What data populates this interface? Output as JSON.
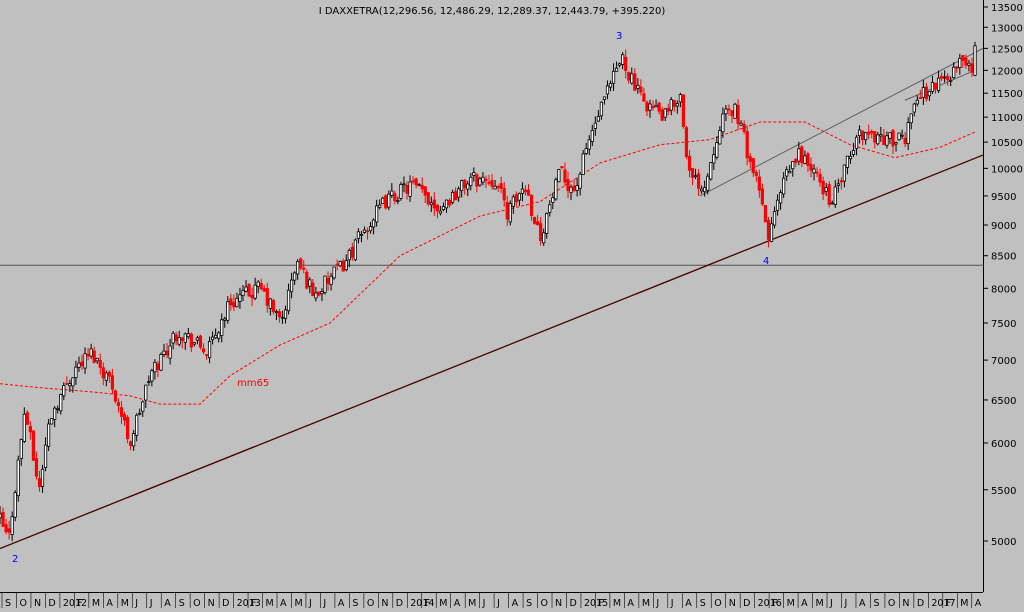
{
  "header": {
    "title": "I DAXXETRA(12,296.56, 12,486.29, 12,289.37, 12,443.79, +395.220)"
  },
  "annotations": {
    "wave_2": "2",
    "wave_3": "3",
    "wave_4": "4",
    "ma_label": "mm65"
  },
  "colors": {
    "background": "#c0c0c0",
    "up_candle": "#000000",
    "down_candle": "#ff0000",
    "ma_line": "#ff0000",
    "trendline": "#400000",
    "channel": "#606060",
    "label_blue": "#0000ff"
  },
  "chart_data": {
    "type": "candlestick",
    "title": "I DAXXETRA(12,296.56, 12,486.29, 12,289.37, 12,443.79, +395.220)",
    "scale": "log",
    "ylim": [
      4500,
      13600
    ],
    "y_ticks": [
      5000,
      5500,
      6000,
      6500,
      7000,
      7500,
      8000,
      8500,
      9000,
      9500,
      10000,
      10500,
      11000,
      11500,
      12000,
      12500,
      13000,
      13500
    ],
    "x_labels": [
      "S",
      "O",
      "N",
      "D",
      "2012",
      "F",
      "M",
      "A",
      "M",
      "J",
      "J",
      "A",
      "S",
      "O",
      "N",
      "D",
      "2013",
      "F",
      "M",
      "A",
      "M",
      "J",
      "J",
      "A",
      "S",
      "O",
      "N",
      "D",
      "2014",
      "F",
      "M",
      "A",
      "M",
      "J",
      "J",
      "A",
      "S",
      "O",
      "N",
      "D",
      "2015",
      "F",
      "M",
      "A",
      "M",
      "J",
      "J",
      "A",
      "S",
      "O",
      "N",
      "D",
      "2016",
      "F",
      "M",
      "A",
      "M",
      "J",
      "J",
      "A",
      "S",
      "O",
      "N",
      "D",
      "2017",
      "F",
      "M",
      "A"
    ],
    "key_points": [
      {
        "t": 0.0,
        "close": 5200
      },
      {
        "t": 8.5,
        "close": 5000
      },
      {
        "t": 25.0,
        "close": 6400
      },
      {
        "t": 39.0,
        "close": 5500
      },
      {
        "t": 50.0,
        "close": 6300
      },
      {
        "t": 75.0,
        "close": 6900
      },
      {
        "t": 92.0,
        "close": 7100
      },
      {
        "t": 112.0,
        "close": 6700
      },
      {
        "t": 130.0,
        "close": 6000
      },
      {
        "t": 150.0,
        "close": 6800
      },
      {
        "t": 178.0,
        "close": 7400
      },
      {
        "t": 208.0,
        "close": 7100
      },
      {
        "t": 230.0,
        "close": 7800
      },
      {
        "t": 260.0,
        "close": 8000
      },
      {
        "t": 281.0,
        "close": 7500
      },
      {
        "t": 297.0,
        "close": 8400
      },
      {
        "t": 315.0,
        "close": 7900
      },
      {
        "t": 345.0,
        "close": 8400
      },
      {
        "t": 360.0,
        "close": 8800
      },
      {
        "t": 385.0,
        "close": 9400
      },
      {
        "t": 411.0,
        "close": 9700
      },
      {
        "t": 440.0,
        "close": 9300
      },
      {
        "t": 470.0,
        "close": 9800
      },
      {
        "t": 495.0,
        "close": 9800
      },
      {
        "t": 508.0,
        "close": 9200
      },
      {
        "t": 525.0,
        "close": 9700
      },
      {
        "t": 540.0,
        "close": 8800
      },
      {
        "t": 560.0,
        "close": 9900
      },
      {
        "t": 575.0,
        "close": 9600
      },
      {
        "t": 590.0,
        "close": 10600
      },
      {
        "t": 622.0,
        "close": 12300
      },
      {
        "t": 640.0,
        "close": 11400
      },
      {
        "t": 665.0,
        "close": 11000
      },
      {
        "t": 680.0,
        "close": 11500
      },
      {
        "t": 690.0,
        "close": 9800
      },
      {
        "t": 705.0,
        "close": 9700
      },
      {
        "t": 720.0,
        "close": 10900
      },
      {
        "t": 735.0,
        "close": 11200
      },
      {
        "t": 745.0,
        "close": 10500
      },
      {
        "t": 760.0,
        "close": 9500
      },
      {
        "t": 768.0,
        "close": 8800
      },
      {
        "t": 785.0,
        "close": 9800
      },
      {
        "t": 800.0,
        "close": 10300
      },
      {
        "t": 818.0,
        "close": 9800
      },
      {
        "t": 832.0,
        "close": 9400
      },
      {
        "t": 850.0,
        "close": 10200
      },
      {
        "t": 860.0,
        "close": 10700
      },
      {
        "t": 880.0,
        "close": 10600
      },
      {
        "t": 905.0,
        "close": 10500
      },
      {
        "t": 912.0,
        "close": 11300
      },
      {
        "t": 930.0,
        "close": 11600
      },
      {
        "t": 955.0,
        "close": 12000
      },
      {
        "t": 965.0,
        "close": 12300
      },
      {
        "t": 972.0,
        "close": 12000
      },
      {
        "t": 975.0,
        "close": 12444
      }
    ],
    "ma65_points": [
      {
        "t": 0.0,
        "v": 6700
      },
      {
        "t": 40.0,
        "v": 6650
      },
      {
        "t": 90.0,
        "v": 6600
      },
      {
        "t": 130.0,
        "v": 6550
      },
      {
        "t": 160.0,
        "v": 6450
      },
      {
        "t": 200.0,
        "v": 6450
      },
      {
        "t": 230.0,
        "v": 6800
      },
      {
        "t": 280.0,
        "v": 7200
      },
      {
        "t": 330.0,
        "v": 7500
      },
      {
        "t": 400.0,
        "v": 8500
      },
      {
        "t": 480.0,
        "v": 9150
      },
      {
        "t": 540.0,
        "v": 9400
      },
      {
        "t": 600.0,
        "v": 10100
      },
      {
        "t": 660.0,
        "v": 10450
      },
      {
        "t": 710.0,
        "v": 10550
      },
      {
        "t": 760.0,
        "v": 10900
      },
      {
        "t": 805.0,
        "v": 10900
      },
      {
        "t": 850.0,
        "v": 10450
      },
      {
        "t": 895.0,
        "v": 10200
      },
      {
        "t": 940.0,
        "v": 10400
      },
      {
        "t": 975.0,
        "v": 10700
      }
    ],
    "trendline": [
      {
        "t": 0.0,
        "v": 4930
      },
      {
        "t": 983.0,
        "v": 10250
      }
    ],
    "channel_upper": [
      {
        "t": 700.0,
        "v": 9500
      },
      {
        "t": 983.0,
        "v": 12500
      }
    ],
    "channel_lower": [
      {
        "t": 905.0,
        "v": 11350
      },
      {
        "t": 975.0,
        "v": 12000
      }
    ],
    "horizontal_line": 8350
  }
}
